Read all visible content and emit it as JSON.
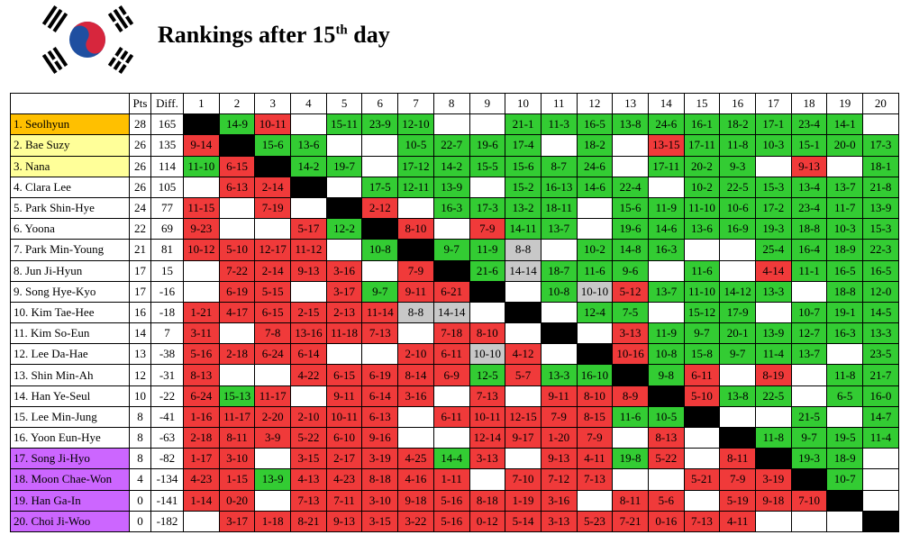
{
  "header": {
    "title": "Rankings after 15",
    "title_sup": "th",
    "title_tail": " day"
  },
  "table": {
    "columns_head": [
      "Pts",
      "Diff."
    ],
    "columns": [
      1,
      2,
      3,
      4,
      5,
      6,
      7,
      8,
      9,
      10,
      11,
      12,
      13,
      14,
      15,
      16,
      17,
      18,
      19,
      20
    ],
    "colors": {
      "win": "#33cc33",
      "loss": "#f03a3a",
      "draw": "#c8c8c8",
      "self": "#000000"
    },
    "rows": [
      {
        "name": "1. Seolhyun",
        "pts": 28,
        "diff": 165,
        "color": "#ffc000",
        "results": [
          null,
          "14-9",
          "10-11",
          null,
          "15-11",
          "23-9",
          "12-10",
          null,
          null,
          "21-1",
          "11-3",
          "16-5",
          "13-8",
          "24-6",
          "16-1",
          "18-2",
          "17-1",
          "23-4",
          "14-1",
          null
        ]
      },
      {
        "name": "2. Bae Suzy",
        "pts": 26,
        "diff": 135,
        "color": "#ffff99",
        "results": [
          "9-14",
          null,
          "15-6",
          "13-6",
          null,
          null,
          "10-5",
          "22-7",
          "19-6",
          "17-4",
          null,
          "18-2",
          null,
          "13-15",
          "17-11",
          "11-8",
          "10-3",
          "15-1",
          "20-0",
          "17-3"
        ]
      },
      {
        "name": "3. Nana",
        "pts": 26,
        "diff": 114,
        "color": "#ffff99",
        "results": [
          "11-10",
          "6-15",
          null,
          "14-2",
          "19-7",
          null,
          "17-12",
          "14-2",
          "15-5",
          "15-6",
          "8-7",
          "24-6",
          null,
          "17-11",
          "20-2",
          "9-3",
          null,
          "9-13",
          null,
          "18-1"
        ]
      },
      {
        "name": "4. Clara Lee",
        "pts": 26,
        "diff": 105,
        "results": [
          null,
          "6-13",
          "2-14",
          null,
          null,
          "17-5",
          "12-11",
          "13-9",
          null,
          "15-2",
          "16-13",
          "14-6",
          "22-4",
          null,
          "10-2",
          "22-5",
          "15-3",
          "13-4",
          "13-7",
          "21-8"
        ]
      },
      {
        "name": "5. Park Shin-Hye",
        "pts": 24,
        "diff": 77,
        "results": [
          "11-15",
          null,
          "7-19",
          null,
          null,
          "2-12",
          null,
          "16-3",
          "17-3",
          "13-2",
          "18-11",
          null,
          "15-6",
          "11-9",
          "11-10",
          "10-6",
          "17-2",
          "23-4",
          "11-7",
          "13-9"
        ]
      },
      {
        "name": "6. Yoona",
        "pts": 22,
        "diff": 69,
        "results": [
          "9-23",
          null,
          null,
          "5-17",
          "12-2",
          null,
          "8-10",
          null,
          "7-9",
          "14-11",
          "13-7",
          null,
          "19-6",
          "14-6",
          "13-6",
          "16-9",
          "19-3",
          "18-8",
          "10-3",
          "15-3"
        ]
      },
      {
        "name": "7. Park Min-Young",
        "pts": 21,
        "diff": 81,
        "results": [
          "10-12",
          "5-10",
          "12-17",
          "11-12",
          null,
          "10-8",
          null,
          "9-7",
          "11-9",
          "8-8",
          null,
          "10-2",
          "14-8",
          "16-3",
          null,
          null,
          "25-4",
          "16-4",
          "18-9",
          "22-3"
        ]
      },
      {
        "name": "8. Jun Ji-Hyun",
        "pts": 17,
        "diff": 15,
        "results": [
          null,
          "7-22",
          "2-14",
          "9-13",
          "3-16",
          null,
          "7-9",
          null,
          "21-6",
          "14-14",
          "18-7",
          "11-6",
          "9-6",
          null,
          "11-6",
          null,
          "4-14",
          "11-1",
          "16-5",
          "16-5"
        ]
      },
      {
        "name": "9. Song Hye-Kyo",
        "pts": 17,
        "diff": -16,
        "results": [
          null,
          "6-19",
          "5-15",
          null,
          "3-17",
          "9-7",
          "9-11",
          "6-21",
          null,
          null,
          "10-8",
          "10-10",
          "5-12",
          "13-7",
          "11-10",
          "14-12",
          "13-3",
          null,
          "18-8",
          "12-0"
        ]
      },
      {
        "name": "10. Kim Tae-Hee",
        "pts": 16,
        "diff": -18,
        "results": [
          "1-21",
          "4-17",
          "6-15",
          "2-15",
          "2-13",
          "11-14",
          "8-8",
          "14-14",
          null,
          null,
          null,
          "12-4",
          "7-5",
          null,
          "15-12",
          "17-9",
          null,
          "10-7",
          "19-1",
          "14-5"
        ]
      },
      {
        "name": "11. Kim So-Eun",
        "pts": 14,
        "diff": 7,
        "results": [
          "3-11",
          null,
          "7-8",
          "13-16",
          "11-18",
          "7-13",
          null,
          "7-18",
          "8-10",
          null,
          null,
          null,
          "3-13",
          "11-9",
          "9-7",
          "20-1",
          "13-9",
          "12-7",
          "16-3",
          "13-3"
        ]
      },
      {
        "name": "12. Lee Da-Hae",
        "pts": 13,
        "diff": -38,
        "results": [
          "5-16",
          "2-18",
          "6-24",
          "6-14",
          null,
          null,
          "2-10",
          "6-11",
          "10-10",
          "4-12",
          null,
          null,
          "10-16",
          "10-8",
          "15-8",
          "9-7",
          "11-4",
          "13-7",
          null,
          "23-5"
        ]
      },
      {
        "name": "13. Shin Min-Ah",
        "pts": 12,
        "diff": -31,
        "results": [
          "8-13",
          null,
          null,
          "4-22",
          "6-15",
          "6-19",
          "8-14",
          "6-9",
          "12-5",
          "5-7",
          "13-3",
          "16-10",
          null,
          "9-8",
          "6-11",
          null,
          "8-19",
          null,
          "11-8",
          "21-7"
        ]
      },
      {
        "name": "14. Han Ye-Seul",
        "pts": 10,
        "diff": -22,
        "results": [
          "6-24",
          "15-13",
          "11-17",
          null,
          "9-11",
          "6-14",
          "3-16",
          null,
          "7-13",
          null,
          "9-11",
          "8-10",
          "8-9",
          null,
          "5-10",
          "13-8",
          "22-5",
          null,
          "6-5",
          "16-0"
        ]
      },
      {
        "name": "15. Lee Min-Jung",
        "pts": 8,
        "diff": -41,
        "results": [
          "1-16",
          "11-17",
          "2-20",
          "2-10",
          "10-11",
          "6-13",
          null,
          "6-11",
          "10-11",
          "12-15",
          "7-9",
          "8-15",
          "11-6",
          "10-5",
          null,
          null,
          null,
          "21-5",
          null,
          "14-7"
        ]
      },
      {
        "name": "16. Yoon Eun-Hye",
        "pts": 8,
        "diff": -63,
        "results": [
          "2-18",
          "8-11",
          "3-9",
          "5-22",
          "6-10",
          "9-16",
          null,
          null,
          "12-14",
          "9-17",
          "1-20",
          "7-9",
          null,
          "8-13",
          null,
          null,
          "11-8",
          "9-7",
          "19-5",
          "11-4"
        ]
      },
      {
        "name": "17. Song Ji-Hyo",
        "pts": 8,
        "diff": -82,
        "color": "#cc66ff",
        "results": [
          "1-17",
          "3-10",
          null,
          "3-15",
          "2-17",
          "3-19",
          "4-25",
          "14-4",
          "3-13",
          null,
          "9-13",
          "4-11",
          "19-8",
          "5-22",
          null,
          "8-11",
          null,
          "19-3",
          "18-9",
          null
        ]
      },
      {
        "name": "18. Moon Chae-Won",
        "pts": 4,
        "diff": -134,
        "color": "#cc66ff",
        "results": [
          "4-23",
          "1-15",
          "13-9",
          "4-13",
          "4-23",
          "8-18",
          "4-16",
          "1-11",
          null,
          "7-10",
          "7-12",
          "7-13",
          null,
          null,
          "5-21",
          "7-9",
          "3-19",
          null,
          "10-7",
          null
        ]
      },
      {
        "name": "19. Han Ga-In",
        "pts": 0,
        "diff": -141,
        "color": "#cc66ff",
        "results": [
          "1-14",
          "0-20",
          null,
          "7-13",
          "7-11",
          "3-10",
          "9-18",
          "5-16",
          "8-18",
          "1-19",
          "3-16",
          null,
          "8-11",
          "5-6",
          null,
          "5-19",
          "9-18",
          "7-10",
          null,
          null
        ]
      },
      {
        "name": "20. Choi Ji-Woo",
        "pts": 0,
        "diff": -182,
        "color": "#cc66ff",
        "results": [
          null,
          "3-17",
          "1-18",
          "8-21",
          "9-13",
          "3-15",
          "3-22",
          "5-16",
          "0-12",
          "5-14",
          "3-13",
          "5-23",
          "7-21",
          "0-16",
          "7-13",
          "4-11",
          null,
          null,
          null,
          null
        ]
      }
    ]
  }
}
